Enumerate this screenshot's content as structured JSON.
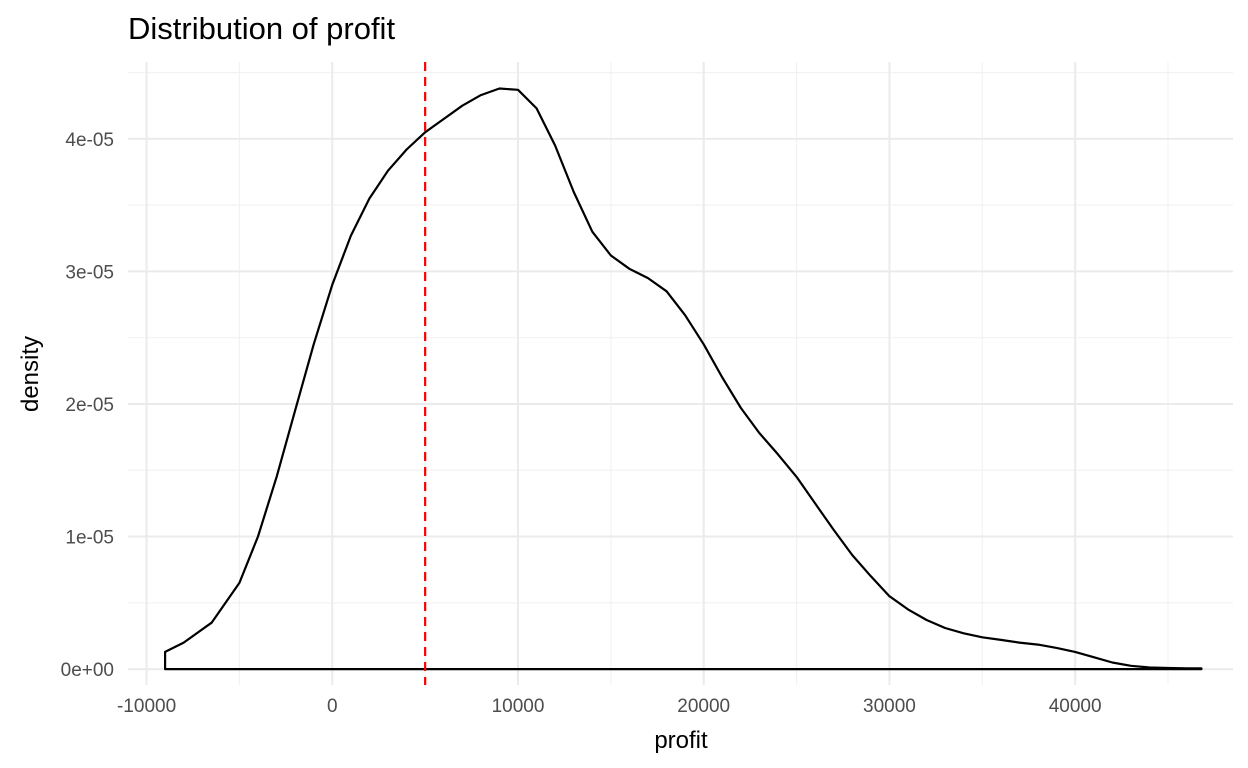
{
  "chart_data": {
    "type": "area",
    "title": "Distribution of profit",
    "xlabel": "profit",
    "ylabel": "density",
    "xlim": [
      -11000,
      48500
    ],
    "ylim": [
      -1.2e-06,
      4.58e-05
    ],
    "x_ticks": [
      -10000,
      0,
      10000,
      20000,
      30000,
      40000
    ],
    "x_tick_labels": [
      "-10000",
      "0",
      "10000",
      "20000",
      "30000",
      "40000"
    ],
    "y_ticks": [
      0,
      1e-05,
      2e-05,
      3e-05,
      4e-05
    ],
    "y_tick_labels": [
      "0e+00",
      "1e-05",
      "2e-05",
      "3e-05",
      "4e-05"
    ],
    "grid": true,
    "reference_line": {
      "axis": "x",
      "value": 5000,
      "color": "#ff0000",
      "style": "dashed"
    },
    "series": [
      {
        "x": [
          -9000,
          -8000,
          -6500,
          -5000,
          -4000,
          -3000,
          -2000,
          -1000,
          0,
          1000,
          2000,
          3000,
          4000,
          5000,
          6000,
          7000,
          8000,
          9000,
          10000,
          11000,
          12000,
          13000,
          14000,
          15000,
          16000,
          17000,
          18000,
          19000,
          20000,
          21000,
          22000,
          23000,
          24000,
          25000,
          26000,
          27000,
          28000,
          29000,
          30000,
          31000,
          32000,
          33000,
          34000,
          35000,
          36000,
          37000,
          38000,
          39000,
          40000,
          41000,
          42000,
          43000,
          44000,
          45000,
          46000,
          46800
        ],
        "y": [
          1.3e-06,
          2e-06,
          3.5e-06,
          6.5e-06,
          1e-05,
          1.45e-05,
          1.95e-05,
          2.45e-05,
          2.9e-05,
          3.27e-05,
          3.55e-05,
          3.76e-05,
          3.92e-05,
          4.05e-05,
          4.15e-05,
          4.25e-05,
          4.33e-05,
          4.38e-05,
          4.37e-05,
          4.23e-05,
          3.95e-05,
          3.6e-05,
          3.3e-05,
          3.12e-05,
          3.02e-05,
          2.95e-05,
          2.85e-05,
          2.67e-05,
          2.45e-05,
          2.2e-05,
          1.97e-05,
          1.78e-05,
          1.62e-05,
          1.45e-05,
          1.25e-05,
          1.05e-05,
          8.6e-06,
          7e-06,
          5.5e-06,
          4.5e-06,
          3.7e-06,
          3.1e-06,
          2.7e-06,
          2.4e-06,
          2.2e-06,
          2e-06,
          1.85e-06,
          1.6e-06,
          1.3e-06,
          9e-07,
          5e-07,
          2.5e-07,
          1.2e-07,
          8e-08,
          5e-08,
          5e-08
        ]
      }
    ]
  }
}
